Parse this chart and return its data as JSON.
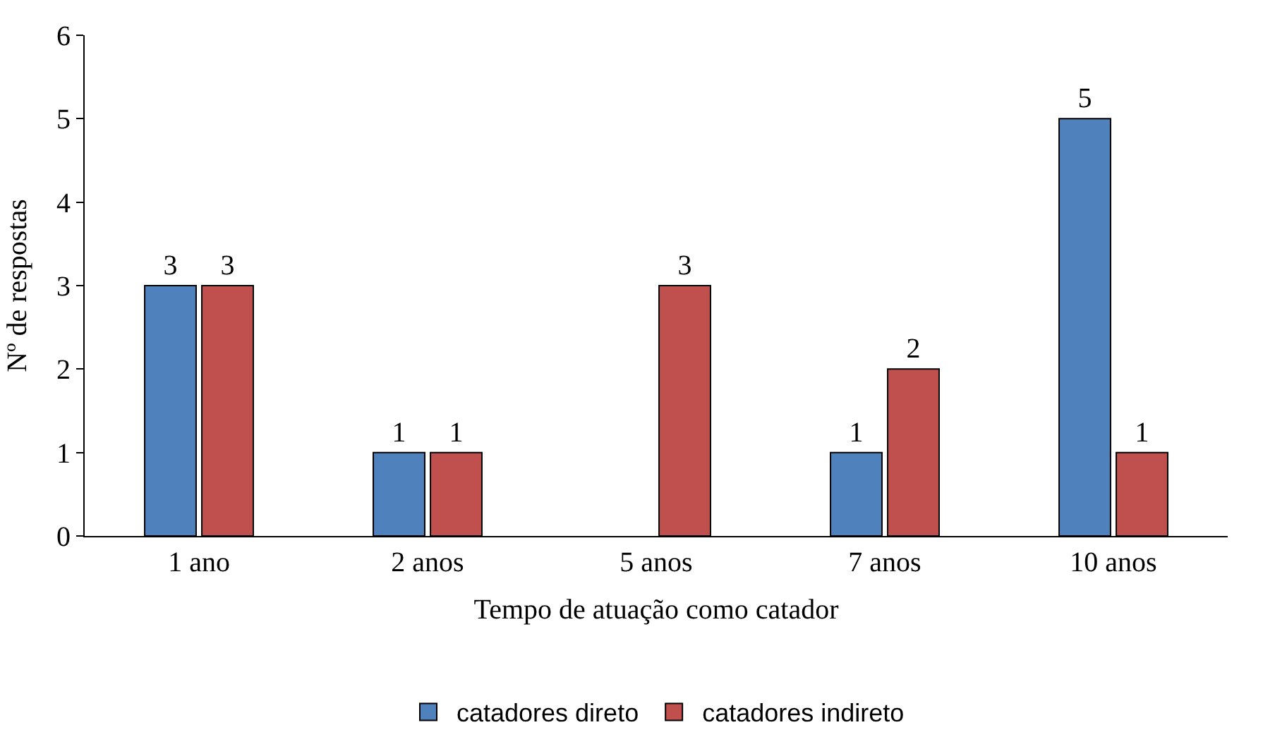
{
  "chart_data": {
    "type": "bar",
    "xlabel": "Tempo de atuação como catador",
    "ylabel": "Nº de respostas",
    "categories": [
      "1 ano",
      "2 anos",
      "5 anos",
      "7 anos",
      "10 anos"
    ],
    "series": [
      {
        "name": "catadores direto",
        "color": "#4f81bd",
        "values": [
          3,
          1,
          null,
          1,
          5
        ]
      },
      {
        "name": "catadores indireto",
        "color": "#c0504d",
        "values": [
          3,
          1,
          3,
          2,
          1
        ]
      }
    ],
    "ylim": [
      0,
      6
    ],
    "yticks": [
      0,
      1,
      2,
      3,
      4,
      5,
      6
    ],
    "grid": false,
    "legend": "bottom",
    "data_labels": true
  }
}
